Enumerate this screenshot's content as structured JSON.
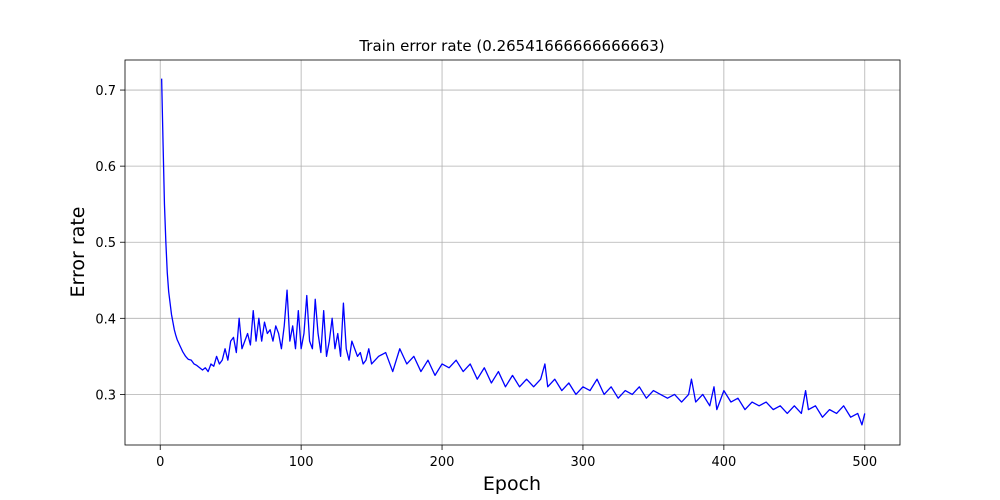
{
  "chart_data": {
    "type": "line",
    "title": "Train error rate (0.26541666666666663)",
    "xlabel": "Epoch",
    "ylabel": "Error rate",
    "xlim": [
      -25,
      525
    ],
    "ylim": [
      0.2335,
      0.7395
    ],
    "xticks": [
      0,
      100,
      200,
      300,
      400,
      500
    ],
    "xtick_labels": [
      "0",
      "100",
      "200",
      "300",
      "400",
      "500"
    ],
    "yticks": [
      0.3,
      0.4,
      0.5,
      0.6,
      0.7
    ],
    "ytick_labels": [
      "0.3",
      "0.4",
      "0.5",
      "0.6",
      "0.7"
    ],
    "grid": true,
    "line_color": "#0000ff",
    "series": [
      {
        "x": [
          1,
          2,
          3,
          4,
          5,
          6,
          7,
          8,
          9,
          10,
          11,
          12,
          13,
          14,
          15,
          16,
          17,
          18,
          19,
          20,
          22,
          24,
          26,
          28,
          30,
          32,
          34,
          36,
          38,
          40,
          42,
          44,
          46,
          48,
          50,
          52,
          54,
          56,
          58,
          60,
          62,
          64,
          66,
          68,
          70,
          72,
          74,
          76,
          78,
          80,
          82,
          84,
          86,
          88,
          90,
          92,
          94,
          96,
          98,
          100,
          102,
          104,
          106,
          108,
          110,
          112,
          114,
          116,
          118,
          120,
          122,
          124,
          126,
          128,
          130,
          132,
          134,
          136,
          138,
          140,
          142,
          144,
          146,
          148,
          150,
          155,
          160,
          165,
          170,
          175,
          180,
          185,
          190,
          195,
          200,
          205,
          210,
          215,
          220,
          225,
          230,
          235,
          240,
          245,
          250,
          255,
          260,
          265,
          270,
          273,
          275,
          280,
          285,
          290,
          295,
          300,
          305,
          310,
          315,
          320,
          325,
          330,
          335,
          340,
          345,
          350,
          355,
          360,
          365,
          370,
          375,
          377,
          380,
          385,
          390,
          393,
          395,
          400,
          405,
          410,
          415,
          420,
          425,
          430,
          435,
          440,
          445,
          450,
          455,
          458,
          460,
          465,
          470,
          475,
          480,
          485,
          490,
          495,
          498,
          500
        ],
        "y": [
          0.715,
          0.63,
          0.55,
          0.5,
          0.46,
          0.435,
          0.42,
          0.405,
          0.395,
          0.385,
          0.378,
          0.372,
          0.368,
          0.364,
          0.36,
          0.356,
          0.353,
          0.35,
          0.348,
          0.346,
          0.345,
          0.34,
          0.338,
          0.335,
          0.332,
          0.335,
          0.33,
          0.34,
          0.337,
          0.35,
          0.34,
          0.345,
          0.36,
          0.345,
          0.37,
          0.375,
          0.355,
          0.4,
          0.36,
          0.37,
          0.38,
          0.365,
          0.41,
          0.37,
          0.4,
          0.37,
          0.395,
          0.38,
          0.385,
          0.37,
          0.39,
          0.38,
          0.36,
          0.39,
          0.437,
          0.37,
          0.39,
          0.36,
          0.41,
          0.36,
          0.38,
          0.43,
          0.37,
          0.36,
          0.425,
          0.38,
          0.355,
          0.41,
          0.35,
          0.37,
          0.4,
          0.36,
          0.38,
          0.35,
          0.42,
          0.36,
          0.345,
          0.37,
          0.36,
          0.35,
          0.355,
          0.34,
          0.345,
          0.36,
          0.34,
          0.35,
          0.355,
          0.33,
          0.36,
          0.34,
          0.35,
          0.33,
          0.345,
          0.325,
          0.34,
          0.335,
          0.345,
          0.33,
          0.34,
          0.32,
          0.335,
          0.315,
          0.33,
          0.31,
          0.325,
          0.31,
          0.32,
          0.31,
          0.32,
          0.34,
          0.31,
          0.32,
          0.305,
          0.315,
          0.3,
          0.31,
          0.305,
          0.32,
          0.3,
          0.31,
          0.295,
          0.305,
          0.3,
          0.31,
          0.295,
          0.305,
          0.3,
          0.295,
          0.3,
          0.29,
          0.3,
          0.32,
          0.29,
          0.3,
          0.285,
          0.31,
          0.28,
          0.305,
          0.29,
          0.295,
          0.28,
          0.29,
          0.285,
          0.29,
          0.28,
          0.285,
          0.275,
          0.285,
          0.275,
          0.305,
          0.28,
          0.285,
          0.27,
          0.28,
          0.275,
          0.285,
          0.27,
          0.275,
          0.26,
          0.275
        ]
      }
    ]
  }
}
